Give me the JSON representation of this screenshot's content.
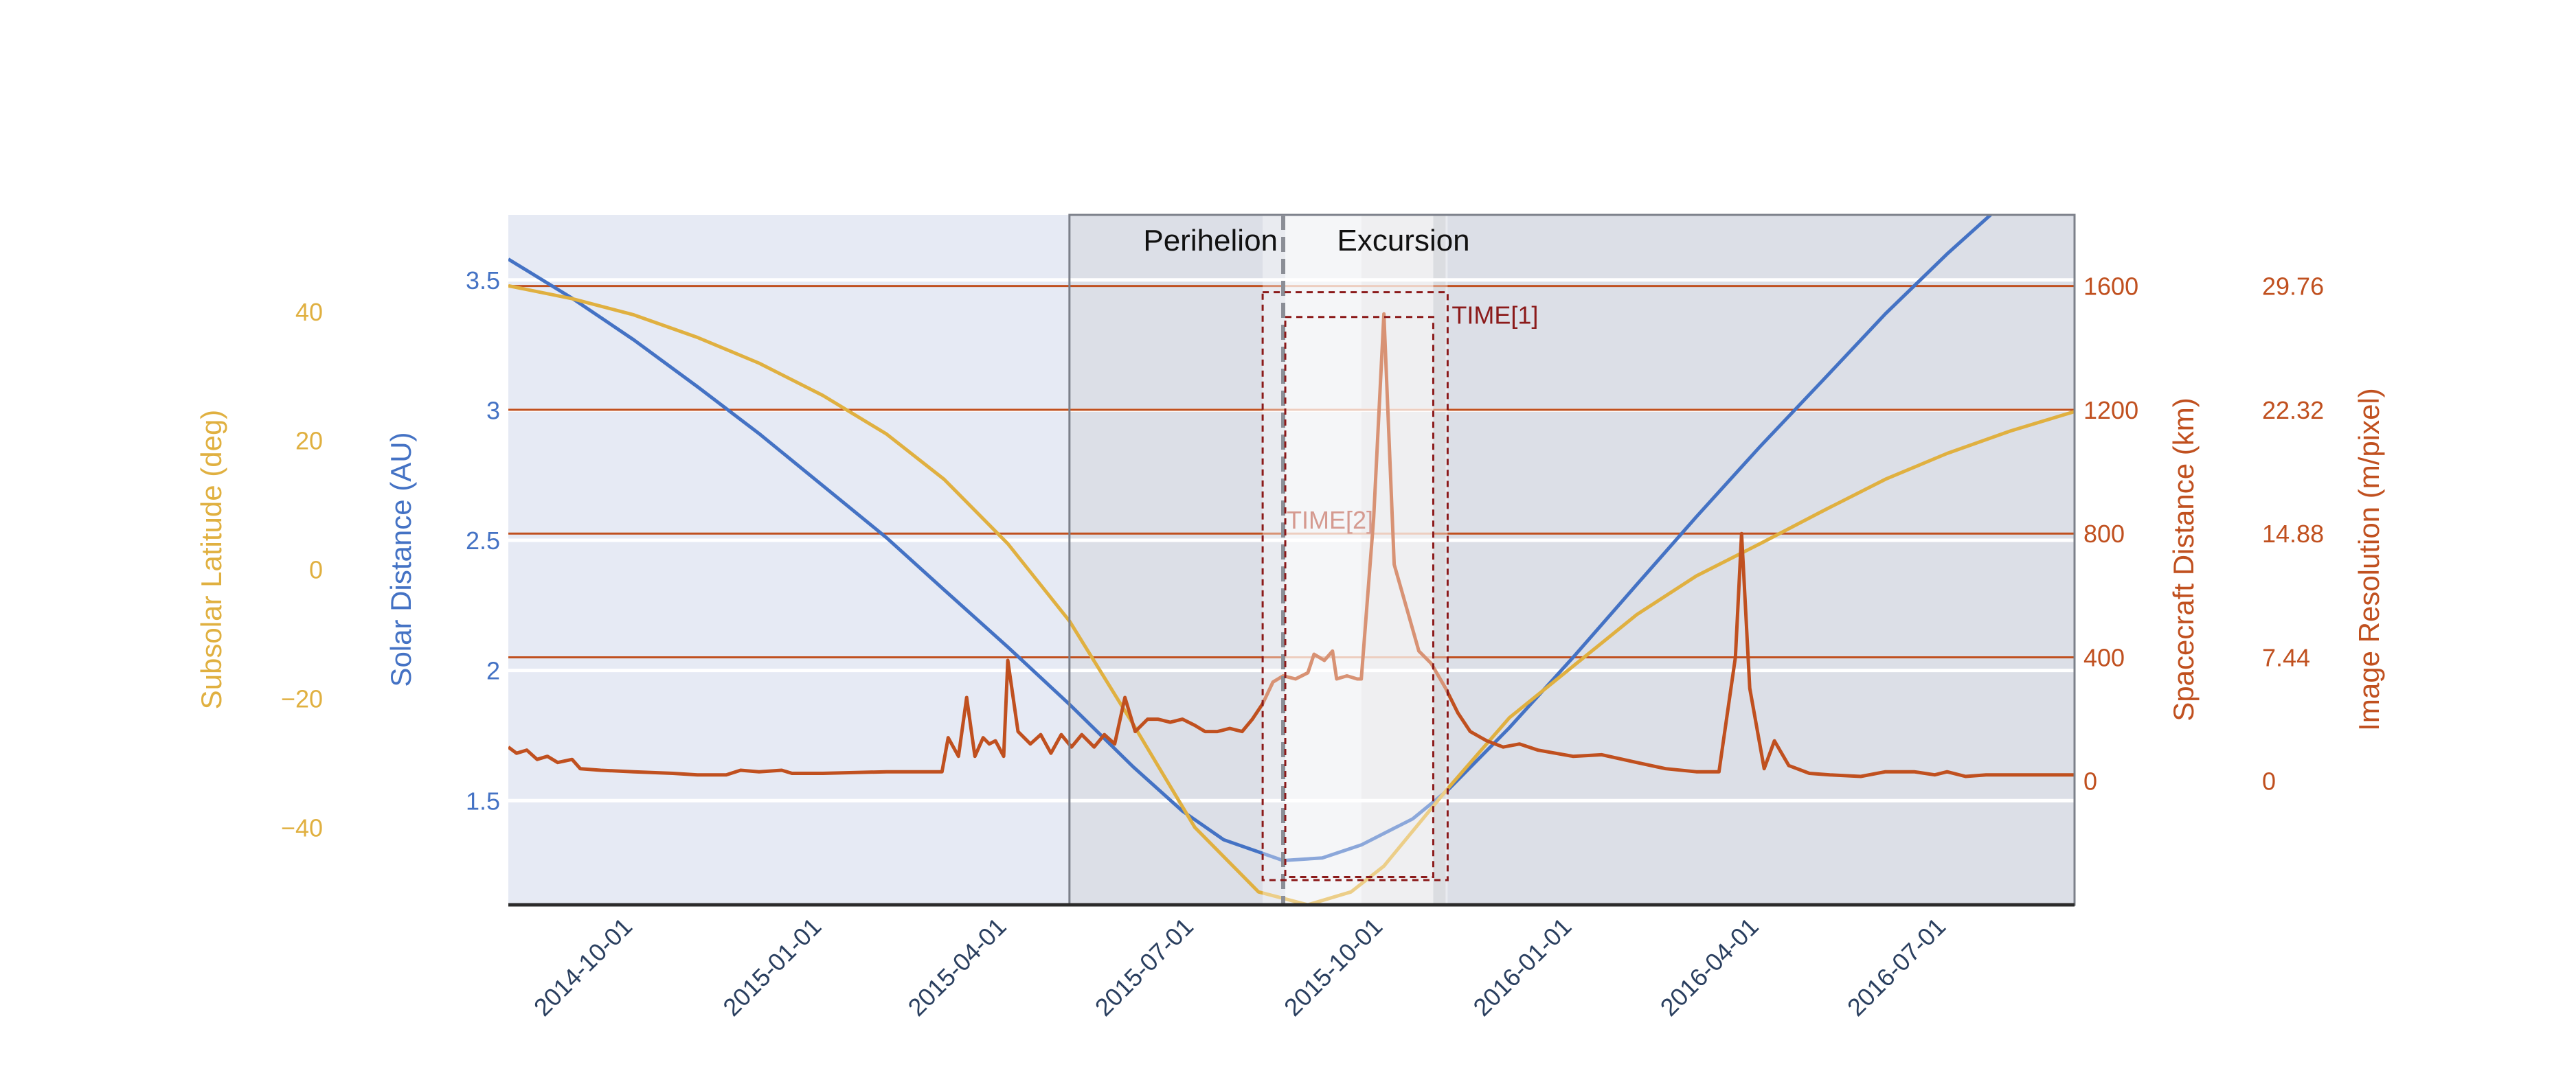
{
  "chart_data": {
    "type": "line",
    "x_axis": {
      "type": "date",
      "range": [
        "2014-08-01",
        "2016-09-01"
      ],
      "ticks": [
        "2014-10-01",
        "2015-01-01",
        "2015-04-01",
        "2015-07-01",
        "2015-10-01",
        "2016-01-01",
        "2016-04-01",
        "2016-07-01"
      ]
    },
    "axes": {
      "subsolar_latitude": {
        "label": "Subsolar Latitude (deg)",
        "side": "left-outer",
        "range": [
          -52,
          55
        ],
        "ticks": [
          "40",
          "20",
          "0",
          "−20",
          "−40"
        ],
        "tick_values": [
          40,
          20,
          0,
          -20,
          -40
        ],
        "color": "#e0b040"
      },
      "solar_distance": {
        "label": "Solar Distance (AU)",
        "side": "left-inner",
        "range": [
          1.1,
          3.75
        ],
        "ticks": [
          "3.5",
          "3",
          "2.5",
          "2",
          "1.5"
        ],
        "tick_values": [
          3.5,
          3,
          2.5,
          2,
          1.5
        ],
        "color": "#4472c4"
      },
      "spacecraft_distance": {
        "label": "Spacecraft Distance (km)",
        "side": "right-inner",
        "range": [
          -400,
          1830
        ],
        "ticks": [
          "1600",
          "1200",
          "800",
          "400",
          "0"
        ],
        "tick_values": [
          1600,
          1200,
          800,
          400,
          0
        ],
        "color": "#c0501f",
        "gridlines": true
      },
      "image_resolution": {
        "label": "Image Resolution (m/pixel)",
        "side": "right-outer",
        "ticks": [
          "29.76",
          "22.32",
          "14.88",
          "7.44",
          "0"
        ],
        "tick_values": [
          29.76,
          22.32,
          14.88,
          7.44,
          0
        ],
        "color": "#c0501f"
      }
    },
    "regions": [
      {
        "label": "Perihelion",
        "start": "2015-05-01",
        "end": "2015-08-13",
        "marker": "2015-08-13"
      },
      {
        "label": "Excursion",
        "start": "2015-09-20",
        "end": "2015-10-31"
      }
    ],
    "annotations": [
      {
        "label": "TIME[1]",
        "start": "2015-08-03",
        "end": "2015-11-01",
        "y0": -320,
        "y1": 1580
      },
      {
        "label": "TIME[2]",
        "start": "2015-08-14",
        "end": "2015-10-25",
        "y0": -310,
        "y1": 1500
      }
    ],
    "series": [
      {
        "axis": "solar_distance",
        "color": "#4472c4",
        "points": [
          [
            "2014-08-01",
            3.58
          ],
          [
            "2014-09-01",
            3.43
          ],
          [
            "2014-10-01",
            3.27
          ],
          [
            "2014-11-01",
            3.09
          ],
          [
            "2014-12-01",
            2.91
          ],
          [
            "2015-01-01",
            2.71
          ],
          [
            "2015-02-01",
            2.51
          ],
          [
            "2015-03-01",
            2.31
          ],
          [
            "2015-04-01",
            2.09
          ],
          [
            "2015-05-01",
            1.87
          ],
          [
            "2015-06-01",
            1.63
          ],
          [
            "2015-06-25",
            1.46
          ],
          [
            "2015-07-15",
            1.35
          ],
          [
            "2015-08-13",
            1.27
          ],
          [
            "2015-09-01",
            1.28
          ],
          [
            "2015-09-20",
            1.33
          ],
          [
            "2015-10-15",
            1.43
          ],
          [
            "2015-11-01",
            1.54
          ],
          [
            "2015-12-01",
            1.78
          ],
          [
            "2016-01-01",
            2.05
          ],
          [
            "2016-02-01",
            2.33
          ],
          [
            "2016-03-01",
            2.59
          ],
          [
            "2016-04-01",
            2.86
          ],
          [
            "2016-05-01",
            3.11
          ],
          [
            "2016-06-01",
            3.37
          ],
          [
            "2016-07-01",
            3.6
          ],
          [
            "2016-08-01",
            3.82
          ],
          [
            "2016-09-01",
            4.03
          ]
        ]
      },
      {
        "axis": "subsolar_latitude",
        "color": "#e0b040",
        "points": [
          [
            "2014-08-01",
            44
          ],
          [
            "2014-09-01",
            42
          ],
          [
            "2014-10-01",
            39.5
          ],
          [
            "2014-11-01",
            36
          ],
          [
            "2014-12-01",
            32
          ],
          [
            "2015-01-01",
            27
          ],
          [
            "2015-02-01",
            21
          ],
          [
            "2015-03-01",
            14
          ],
          [
            "2015-04-01",
            4
          ],
          [
            "2015-05-01",
            -8
          ],
          [
            "2015-06-01",
            -24
          ],
          [
            "2015-07-01",
            -40
          ],
          [
            "2015-08-01",
            -50
          ],
          [
            "2015-08-25",
            -52
          ],
          [
            "2015-09-15",
            -50
          ],
          [
            "2015-10-01",
            -46
          ],
          [
            "2015-11-01",
            -34
          ],
          [
            "2015-12-01",
            -23
          ],
          [
            "2016-01-01",
            -15
          ],
          [
            "2016-02-01",
            -7
          ],
          [
            "2016-03-01",
            -1
          ],
          [
            "2016-04-01",
            4
          ],
          [
            "2016-05-01",
            9
          ],
          [
            "2016-06-01",
            14
          ],
          [
            "2016-07-01",
            18
          ],
          [
            "2016-08-01",
            21.5
          ],
          [
            "2016-09-01",
            24.5
          ]
        ]
      },
      {
        "axis": "spacecraft_distance",
        "color": "#c0501f",
        "points": [
          [
            "2014-08-01",
            110
          ],
          [
            "2014-08-05",
            90
          ],
          [
            "2014-08-10",
            100
          ],
          [
            "2014-08-15",
            70
          ],
          [
            "2014-08-20",
            80
          ],
          [
            "2014-08-25",
            60
          ],
          [
            "2014-09-01",
            70
          ],
          [
            "2014-09-05",
            40
          ],
          [
            "2014-09-15",
            35
          ],
          [
            "2014-10-01",
            30
          ],
          [
            "2014-10-20",
            25
          ],
          [
            "2014-11-01",
            20
          ],
          [
            "2014-11-15",
            20
          ],
          [
            "2014-11-22",
            35
          ],
          [
            "2014-12-01",
            30
          ],
          [
            "2014-12-12",
            35
          ],
          [
            "2014-12-17",
            25
          ],
          [
            "2015-01-01",
            25
          ],
          [
            "2015-02-01",
            30
          ],
          [
            "2015-02-28",
            30
          ],
          [
            "2015-03-03",
            140
          ],
          [
            "2015-03-08",
            80
          ],
          [
            "2015-03-12",
            270
          ],
          [
            "2015-03-16",
            80
          ],
          [
            "2015-03-20",
            140
          ],
          [
            "2015-03-23",
            120
          ],
          [
            "2015-03-26",
            130
          ],
          [
            "2015-03-30",
            80
          ],
          [
            "2015-04-01",
            390
          ],
          [
            "2015-04-06",
            160
          ],
          [
            "2015-04-12",
            120
          ],
          [
            "2015-04-17",
            150
          ],
          [
            "2015-04-22",
            90
          ],
          [
            "2015-04-27",
            150
          ],
          [
            "2015-05-02",
            110
          ],
          [
            "2015-05-07",
            150
          ],
          [
            "2015-05-13",
            110
          ],
          [
            "2015-05-18",
            150
          ],
          [
            "2015-05-23",
            120
          ],
          [
            "2015-05-28",
            270
          ],
          [
            "2015-06-02",
            160
          ],
          [
            "2015-06-08",
            200
          ],
          [
            "2015-06-13",
            200
          ],
          [
            "2015-06-19",
            190
          ],
          [
            "2015-06-25",
            200
          ],
          [
            "2015-07-01",
            180
          ],
          [
            "2015-07-06",
            160
          ],
          [
            "2015-07-12",
            160
          ],
          [
            "2015-07-18",
            170
          ],
          [
            "2015-07-24",
            160
          ],
          [
            "2015-07-29",
            200
          ],
          [
            "2015-08-03",
            250
          ],
          [
            "2015-08-08",
            320
          ],
          [
            "2015-08-13",
            340
          ],
          [
            "2015-08-19",
            330
          ],
          [
            "2015-08-25",
            350
          ],
          [
            "2015-08-28",
            410
          ],
          [
            "2015-09-02",
            390
          ],
          [
            "2015-09-06",
            420
          ],
          [
            "2015-09-08",
            330
          ],
          [
            "2015-09-13",
            340
          ],
          [
            "2015-09-18",
            330
          ],
          [
            "2015-09-20",
            330
          ],
          [
            "2015-09-26",
            850
          ],
          [
            "2015-10-01",
            1510
          ],
          [
            "2015-10-06",
            700
          ],
          [
            "2015-10-12",
            560
          ],
          [
            "2015-10-18",
            420
          ],
          [
            "2015-10-24",
            380
          ],
          [
            "2015-10-31",
            300
          ],
          [
            "2015-11-06",
            220
          ],
          [
            "2015-11-12",
            160
          ],
          [
            "2015-11-20",
            130
          ],
          [
            "2015-11-28",
            110
          ],
          [
            "2015-12-06",
            120
          ],
          [
            "2015-12-15",
            100
          ],
          [
            "2016-01-01",
            80
          ],
          [
            "2016-01-15",
            85
          ],
          [
            "2016-02-01",
            60
          ],
          [
            "2016-02-15",
            40
          ],
          [
            "2016-03-01",
            30
          ],
          [
            "2016-03-12",
            30
          ],
          [
            "2016-03-20",
            400
          ],
          [
            "2016-03-23",
            800
          ],
          [
            "2016-03-27",
            300
          ],
          [
            "2016-04-03",
            40
          ],
          [
            "2016-04-08",
            130
          ],
          [
            "2016-04-15",
            50
          ],
          [
            "2016-04-25",
            25
          ],
          [
            "2016-05-05",
            20
          ],
          [
            "2016-05-20",
            15
          ],
          [
            "2016-06-01",
            30
          ],
          [
            "2016-06-15",
            30
          ],
          [
            "2016-06-25",
            20
          ],
          [
            "2016-07-01",
            30
          ],
          [
            "2016-07-10",
            15
          ],
          [
            "2016-07-20",
            20
          ],
          [
            "2016-08-01",
            20
          ],
          [
            "2016-08-15",
            20
          ],
          [
            "2016-09-01",
            20
          ]
        ]
      }
    ]
  }
}
